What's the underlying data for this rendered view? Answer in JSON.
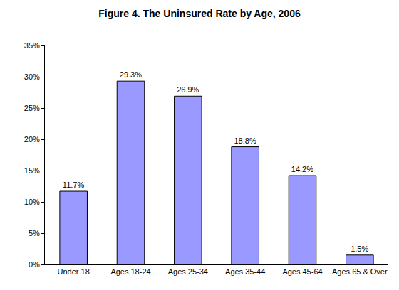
{
  "chart_data": {
    "type": "bar",
    "title": "Figure 4. The Uninsured Rate by Age, 2006",
    "categories": [
      "Under 18",
      "Ages 18-24",
      "Ages 25-34",
      "Ages 35-44",
      "Ages 45-64",
      "Ages 65 & Over"
    ],
    "values": [
      11.7,
      29.3,
      26.9,
      18.8,
      14.2,
      1.5
    ],
    "value_labels": [
      "11.7%",
      "29.3%",
      "26.9%",
      "18.8%",
      "14.2%",
      "1.5%"
    ],
    "color": "#9999ff",
    "ylim": [
      0,
      35
    ],
    "yticks": [
      {
        "value": 0,
        "label": "0%"
      },
      {
        "value": 5,
        "label": "5%"
      },
      {
        "value": 10,
        "label": "10%"
      },
      {
        "value": 15,
        "label": "15%"
      },
      {
        "value": 20,
        "label": "20%"
      },
      {
        "value": 25,
        "label": "25%"
      },
      {
        "value": 30,
        "label": "30%"
      },
      {
        "value": 35,
        "label": "35%"
      }
    ],
    "grid": false,
    "data_labels": true
  }
}
